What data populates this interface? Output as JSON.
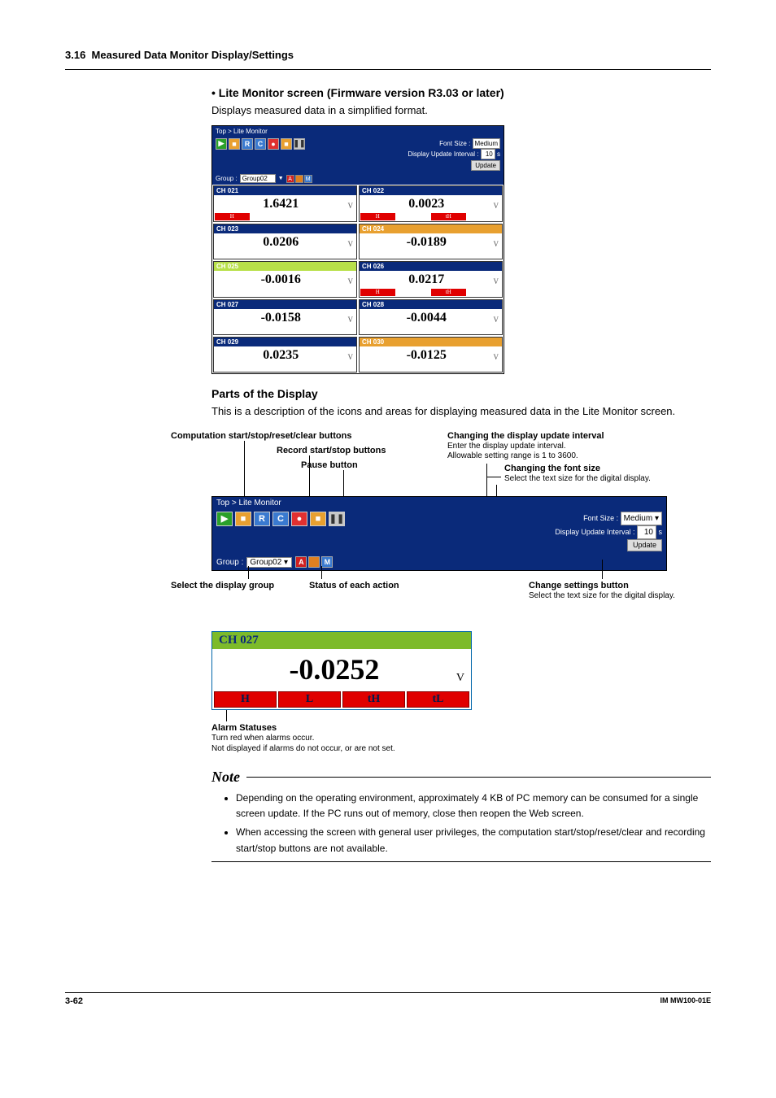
{
  "section": {
    "number": "3.16",
    "title": "Measured Data Monitor Display/Settings"
  },
  "intro": {
    "heading": "Lite Monitor screen (Firmware version R3.03 or later)",
    "text": "Displays measured data in a simplified format."
  },
  "colors": {
    "nav_bg": "#0a2a7a",
    "alarm_red": "#e00000",
    "tile_green": "#7dbb2a",
    "tile_lime": "#b8e04a",
    "btn_green": "#2aa02a",
    "btn_red": "#e03030",
    "btn_orange": "#e8a030",
    "btn_blue": "#3a7ad0",
    "btn_gray": "#c8c8c8",
    "am_red": "#d02020",
    "am_orange": "#e08020"
  },
  "lite": {
    "breadcrumb": "Top > Lite Monitor",
    "font_size_label": "Font Size :",
    "font_size_value": "Medium",
    "interval_label": "Display Update Interval :",
    "interval_value": "10",
    "update_btn": "Update",
    "group_label": "Group :",
    "group_value": "Group02",
    "toolbar_btns": [
      {
        "g": "▶",
        "bg": "#2aa02a"
      },
      {
        "g": "■",
        "bg": "#e8a030"
      },
      {
        "g": "R",
        "bg": "#3a7ad0"
      },
      {
        "g": "C",
        "bg": "#3a7ad0"
      },
      {
        "g": "●",
        "bg": "#e03030"
      },
      {
        "g": "■",
        "bg": "#e8a030"
      },
      {
        "g": "❚❚",
        "bg": "#c8c8c8"
      }
    ],
    "group_btns": [
      {
        "g": "A",
        "bg": "#d02020"
      },
      {
        "g": "",
        "bg": "#e08020"
      },
      {
        "g": "M",
        "bg": "#3a7ad0"
      }
    ],
    "tiles": [
      {
        "ch": "CH 021",
        "hdr": "#0a2a7a",
        "val": "1.6421",
        "unit": "V",
        "alarms": [
          {
            "t": "H",
            "bg": "#e00000"
          }
        ]
      },
      {
        "ch": "CH 022",
        "hdr": "#0a2a7a",
        "val": "0.0023",
        "unit": "V",
        "alarms": [
          {
            "t": "H",
            "bg": "#e00000"
          },
          {
            "t": "",
            "bg": ""
          },
          {
            "t": "tH",
            "bg": "#e00000"
          }
        ]
      },
      {
        "ch": "CH 023",
        "hdr": "#0a2a7a",
        "val": "0.0206",
        "unit": "V",
        "alarms": []
      },
      {
        "ch": "CH 024",
        "hdr": "#e8a030",
        "val": "-0.0189",
        "unit": "V",
        "alarms": []
      },
      {
        "ch": "CH 025",
        "hdr": "#b8e04a",
        "val": "-0.0016",
        "unit": "V",
        "alarms": []
      },
      {
        "ch": "CH 026",
        "hdr": "#0a2a7a",
        "val": "0.0217",
        "unit": "V",
        "alarms": [
          {
            "t": "H",
            "bg": "#e00000"
          },
          {
            "t": "",
            "bg": ""
          },
          {
            "t": "tH",
            "bg": "#e00000"
          }
        ]
      },
      {
        "ch": "CH 027",
        "hdr": "#0a2a7a",
        "val": "-0.0158",
        "unit": "V",
        "alarms": []
      },
      {
        "ch": "CH 028",
        "hdr": "#0a2a7a",
        "val": "-0.0044",
        "unit": "V",
        "alarms": []
      },
      {
        "ch": "CH 029",
        "hdr": "#0a2a7a",
        "val": "0.0235",
        "unit": "V",
        "alarms": []
      },
      {
        "ch": "CH 030",
        "hdr": "#e8a030",
        "val": "-0.0125",
        "unit": "V",
        "alarms": []
      }
    ]
  },
  "parts": {
    "heading": "Parts of the Display",
    "text": "This is a description of the icons and areas for displaying measured data in the Lite Monitor screen."
  },
  "annot": {
    "comp": "Computation start/stop/reset/clear buttons",
    "rec": "Record start/stop buttons",
    "pause": "Pause button",
    "upd_int_t": "Changing the display update interval",
    "upd_int_s1": "Enter the display update interval.",
    "upd_int_s2": "Allowable setting range is 1 to 3600.",
    "font_t": "Changing the font size",
    "font_s": "Select the text size for the digital display.",
    "sel_grp": "Select the display group",
    "status": "Status of each action",
    "chg_btn_t": "Change settings button",
    "chg_btn_s": "Select the text size for the digital display.",
    "breadcrumb": "Top > Lite Monitor",
    "font_size_label": "Font Size :",
    "font_size_value": "Medium",
    "interval_label": "Display Update Interval :",
    "interval_value": "10",
    "update_btn": "Update",
    "group_label": "Group :",
    "group_value": "Group02"
  },
  "bigtile": {
    "ch": "CH 027",
    "val": "-0.0252",
    "unit": "V",
    "alarms": [
      "H",
      "L",
      "tH",
      "tL"
    ],
    "cap_t": "Alarm Statuses",
    "cap_s1": "Turn red when alarms occur.",
    "cap_s2": "Not displayed if alarms do not occur, or are not set."
  },
  "note": {
    "heading": "Note",
    "items": [
      "Depending on the operating environment, approximately 4 KB of PC memory can be consumed for a single screen update. If the PC runs out of memory, close then reopen the Web screen.",
      "When accessing the screen with general user privileges, the computation start/stop/reset/clear and recording start/stop buttons are not available."
    ]
  },
  "footer": {
    "page": "3-62",
    "doc": "IM MW100-01E"
  }
}
